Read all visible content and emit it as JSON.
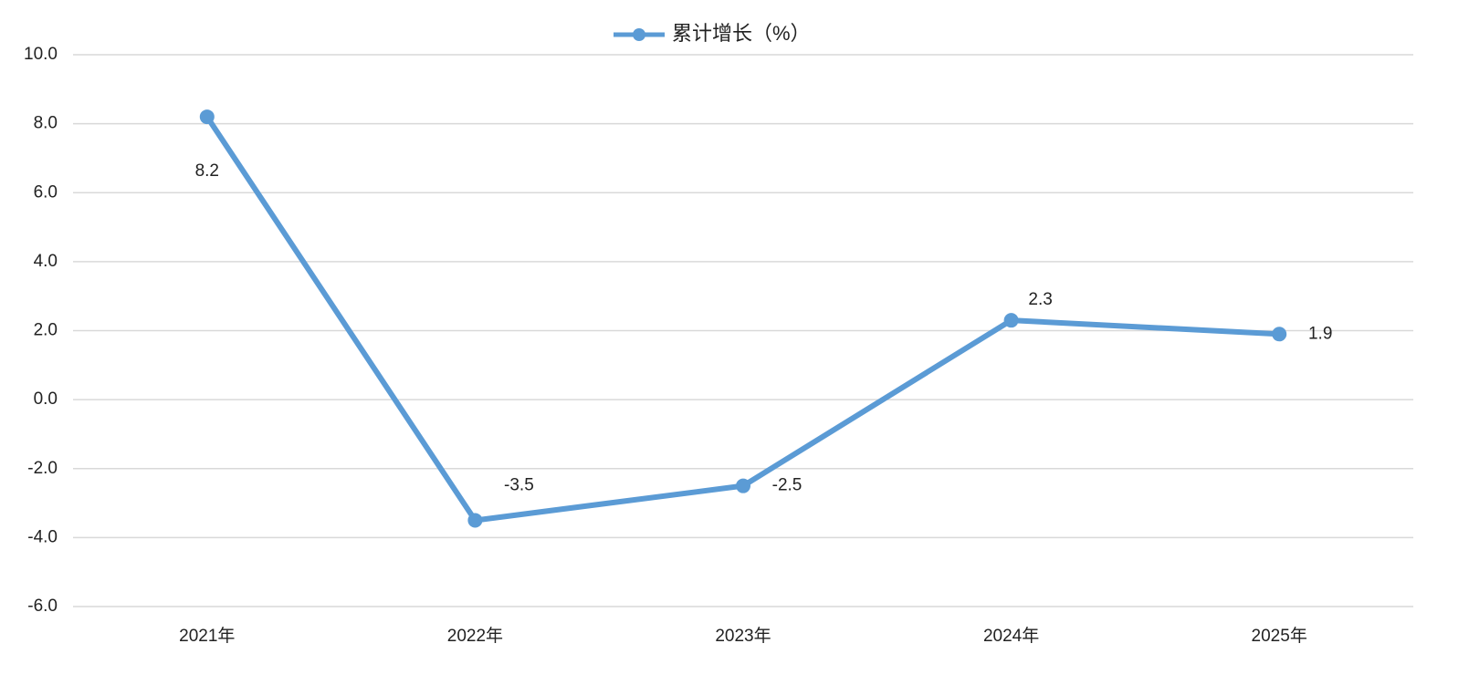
{
  "chart_data": {
    "type": "line",
    "categories": [
      "2021年",
      "2022年",
      "2023年",
      "2024年",
      "2025年"
    ],
    "series": [
      {
        "name": "累计增长（%）",
        "color": "#5b9bd5",
        "values": [
          8.2,
          -3.5,
          -2.5,
          2.3,
          1.9
        ]
      }
    ],
    "ylim": [
      -6,
      10
    ],
    "yticks": [
      {
        "value": -6,
        "label": "-6.0"
      },
      {
        "value": -4,
        "label": "-4.0"
      },
      {
        "value": -2,
        "label": "-2.0"
      },
      {
        "value": 0,
        "label": "0.0"
      },
      {
        "value": 2,
        "label": "2.0"
      },
      {
        "value": 4,
        "label": "4.0"
      },
      {
        "value": 6,
        "label": "6.0"
      },
      {
        "value": 8,
        "label": "8.0"
      },
      {
        "value": 10,
        "label": "10.0"
      }
    ],
    "grid": true,
    "legend": "top"
  }
}
